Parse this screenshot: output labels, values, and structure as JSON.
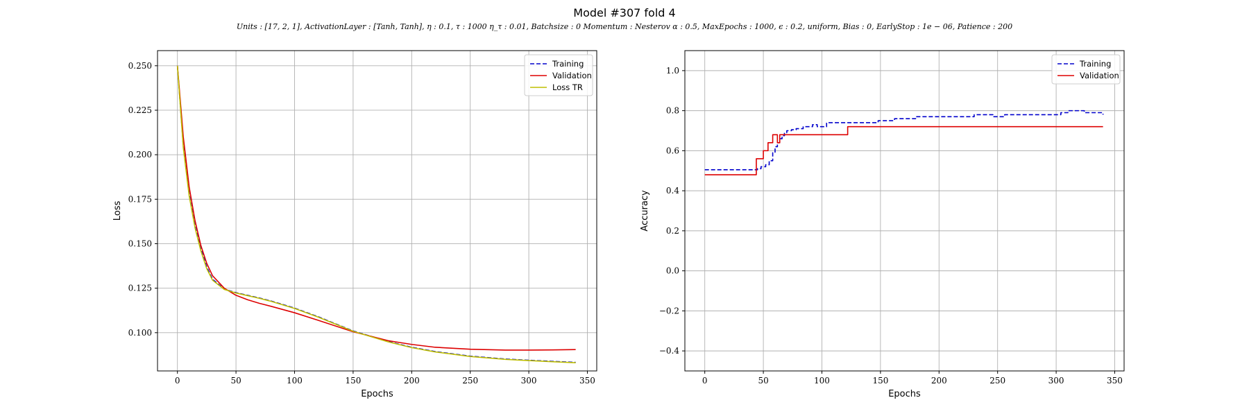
{
  "figure": {
    "title": "Model #307 fold 4",
    "subtitle": "Units : [17, 2, 1], ActivationLayer : [Tanh, Tanh], η : 0.1, τ : 1000 η_τ : 0.01, Batchsize : 0 Momentum : Nesterov α : 0.5, MaxEpochs : 1000, ϵ : 0.2, uniform, Bias : 0, EarlyStop : 1e − 06, Patience : 200"
  },
  "colors": {
    "training": "#0000cc",
    "validation": "#dd0000",
    "loss_tr": "#bfbf00",
    "grid": "#b0b0b0"
  },
  "chart_data": [
    {
      "type": "line",
      "xlabel": "Epochs",
      "ylabel": "Loss",
      "xlim": [
        -17,
        358
      ],
      "ylim": [
        0.0785,
        0.2585
      ],
      "xticks": [
        0,
        50,
        100,
        150,
        200,
        250,
        300,
        350
      ],
      "yticks": [
        0.1,
        0.125,
        0.15,
        0.175,
        0.2,
        0.225,
        0.25
      ],
      "ytick_labels": [
        "0.100",
        "0.125",
        "0.150",
        "0.175",
        "0.200",
        "0.225",
        "0.250"
      ],
      "grid": true,
      "legend": "top-right",
      "series": [
        {
          "name": "Training",
          "style": "dashed",
          "color": "#0000cc",
          "x": [
            0,
            5,
            10,
            15,
            20,
            25,
            30,
            40,
            50,
            60,
            70,
            80,
            100,
            120,
            150,
            180,
            200,
            220,
            250,
            280,
            300,
            320,
            340
          ],
          "y": [
            0.25,
            0.205,
            0.178,
            0.16,
            0.147,
            0.137,
            0.13,
            0.1245,
            0.1225,
            0.121,
            0.1195,
            0.1178,
            0.1138,
            0.109,
            0.101,
            0.095,
            0.0918,
            0.0894,
            0.0868,
            0.0852,
            0.0845,
            0.0839,
            0.0833
          ]
        },
        {
          "name": "Validation",
          "style": "solid",
          "color": "#dd0000",
          "x": [
            0,
            5,
            10,
            15,
            20,
            25,
            30,
            40,
            50,
            60,
            70,
            80,
            100,
            120,
            150,
            180,
            200,
            220,
            250,
            280,
            300,
            320,
            340
          ],
          "y": [
            0.25,
            0.21,
            0.182,
            0.163,
            0.149,
            0.139,
            0.132,
            0.125,
            0.121,
            0.1185,
            0.1165,
            0.1148,
            0.1112,
            0.107,
            0.1005,
            0.0955,
            0.0934,
            0.0918,
            0.0907,
            0.0902,
            0.0902,
            0.0903,
            0.0905
          ]
        },
        {
          "name": "Loss TR",
          "style": "solid",
          "color": "#bfbf00",
          "x": [
            0,
            5,
            10,
            15,
            20,
            25,
            30,
            40,
            50,
            60,
            70,
            80,
            100,
            120,
            150,
            180,
            200,
            220,
            250,
            280,
            300,
            320,
            340
          ],
          "y": [
            0.25,
            0.204,
            0.177,
            0.159,
            0.146,
            0.136,
            0.1295,
            0.1243,
            0.1223,
            0.1208,
            0.1193,
            0.1176,
            0.1136,
            0.1088,
            0.1008,
            0.0948,
            0.0916,
            0.0892,
            0.0866,
            0.085,
            0.0843,
            0.0837,
            0.0831
          ]
        }
      ]
    },
    {
      "type": "line",
      "xlabel": "Epochs",
      "ylabel": "Accuracy",
      "xlim": [
        -17,
        358
      ],
      "ylim": [
        -0.5,
        1.1
      ],
      "xticks": [
        0,
        50,
        100,
        150,
        200,
        250,
        300,
        350
      ],
      "yticks": [
        -0.4,
        -0.2,
        0.0,
        0.2,
        0.4,
        0.6,
        0.8,
        1.0
      ],
      "ytick_labels": [
        "−0.4",
        "−0.2",
        "0.0",
        "0.2",
        "0.4",
        "0.6",
        "0.8",
        "1.0"
      ],
      "grid": true,
      "legend": "top-right",
      "series": [
        {
          "name": "Training",
          "style": "dashed",
          "step": true,
          "color": "#0000cc",
          "x": [
            0,
            45,
            48,
            52,
            55,
            58,
            60,
            62,
            64,
            66,
            68,
            70,
            74,
            78,
            84,
            92,
            96,
            104,
            140,
            148,
            162,
            180,
            212,
            230,
            246,
            250,
            256,
            300,
            304,
            310,
            324,
            340
          ],
          "y": [
            0.505,
            0.51,
            0.52,
            0.53,
            0.55,
            0.59,
            0.62,
            0.64,
            0.66,
            0.675,
            0.69,
            0.7,
            0.705,
            0.71,
            0.72,
            0.73,
            0.72,
            0.74,
            0.74,
            0.75,
            0.76,
            0.77,
            0.77,
            0.78,
            0.77,
            0.77,
            0.78,
            0.78,
            0.79,
            0.8,
            0.79,
            0.78
          ]
        },
        {
          "name": "Validation",
          "style": "solid",
          "step": true,
          "color": "#dd0000",
          "x": [
            0,
            44,
            50,
            54,
            58,
            62,
            64,
            68,
            122,
            340
          ],
          "y": [
            0.48,
            0.56,
            0.6,
            0.64,
            0.68,
            0.64,
            0.68,
            0.68,
            0.72,
            0.72
          ]
        }
      ]
    }
  ]
}
